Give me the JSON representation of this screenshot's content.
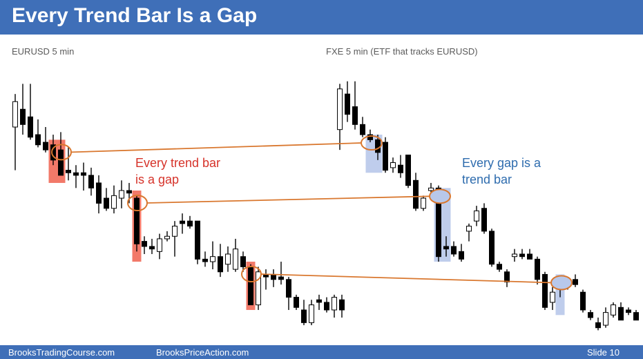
{
  "slide": {
    "title": "Every Trend Bar Is a Gap",
    "footer": {
      "left": "BrooksTradingCourse.com",
      "center": "BrooksPriceAction.com",
      "slide": "Slide  10"
    },
    "colors": {
      "title_bar": "#3f6fb8",
      "red_highlight": "#f0614f",
      "blue_highlight": "#b8c8ea",
      "connector": "#d9772e",
      "bear_body": "#000000",
      "bull_body": "#ffffff",
      "left_annotation": "#d6332a",
      "right_annotation": "#2e6cae"
    }
  },
  "chart_data": [
    {
      "type": "candlestick",
      "title": "EURUSD 5 min",
      "annotation": [
        "Every trend bar",
        "is a gap"
      ],
      "ylim": [
        0,
        100
      ],
      "candles": [
        {
          "o": 75,
          "h": 88,
          "l": 58,
          "c": 85
        },
        {
          "o": 82,
          "h": 92,
          "l": 72,
          "c": 76
        },
        {
          "o": 79,
          "h": 92,
          "l": 70,
          "c": 71
        },
        {
          "o": 72,
          "h": 78,
          "l": 67,
          "c": 68
        },
        {
          "o": 69,
          "h": 75,
          "l": 65,
          "c": 66
        },
        {
          "o": 68,
          "h": 72,
          "l": 60,
          "c": 62
        },
        {
          "o": 66,
          "h": 73,
          "l": 56,
          "c": 56
        },
        {
          "o": 58,
          "h": 67,
          "l": 54,
          "c": 57
        },
        {
          "o": 57,
          "h": 60,
          "l": 51,
          "c": 56
        },
        {
          "o": 57,
          "h": 61,
          "l": 50,
          "c": 56
        },
        {
          "o": 56,
          "h": 59,
          "l": 48,
          "c": 51
        },
        {
          "o": 53,
          "h": 56,
          "l": 41,
          "c": 45
        },
        {
          "o": 47,
          "h": 51,
          "l": 42,
          "c": 43
        },
        {
          "o": 43,
          "h": 52,
          "l": 41,
          "c": 48
        },
        {
          "o": 47,
          "h": 54,
          "l": 43,
          "c": 50
        },
        {
          "o": 50,
          "h": 53,
          "l": 45,
          "c": 49
        },
        {
          "o": 47,
          "h": 48,
          "l": 26,
          "c": 29
        },
        {
          "o": 30,
          "h": 32,
          "l": 25,
          "c": 28
        },
        {
          "o": 28,
          "h": 31,
          "l": 25,
          "c": 27
        },
        {
          "o": 26,
          "h": 33,
          "l": 23,
          "c": 31
        },
        {
          "o": 31,
          "h": 34,
          "l": 30,
          "c": 32
        },
        {
          "o": 32,
          "h": 38,
          "l": 24,
          "c": 36
        },
        {
          "o": 38,
          "h": 41,
          "l": 33,
          "c": 37
        },
        {
          "o": 38,
          "h": 40,
          "l": 35,
          "c": 36
        },
        {
          "o": 38,
          "h": 38,
          "l": 21,
          "c": 23
        },
        {
          "o": 23,
          "h": 26,
          "l": 20,
          "c": 22
        },
        {
          "o": 22,
          "h": 30,
          "l": 19,
          "c": 24
        },
        {
          "o": 24,
          "h": 29,
          "l": 16,
          "c": 18
        },
        {
          "o": 21,
          "h": 28,
          "l": 18,
          "c": 25
        },
        {
          "o": 19,
          "h": 31,
          "l": 18,
          "c": 27
        },
        {
          "o": 24,
          "h": 26,
          "l": 18,
          "c": 20
        },
        {
          "o": 20,
          "h": 21,
          "l": 5,
          "c": 5
        },
        {
          "o": 5,
          "h": 20,
          "l": 3,
          "c": 18
        },
        {
          "o": 17,
          "h": 19,
          "l": 11,
          "c": 16
        },
        {
          "o": 17,
          "h": 19,
          "l": 12,
          "c": 15
        },
        {
          "o": 16,
          "h": 22,
          "l": 13,
          "c": 15
        },
        {
          "o": 15,
          "h": 16,
          "l": 3,
          "c": 8
        },
        {
          "o": 8,
          "h": 9,
          "l": 3,
          "c": 4
        },
        {
          "o": 3,
          "h": 7,
          "l": -3,
          "c": -2
        },
        {
          "o": -2,
          "h": 7,
          "l": -3,
          "c": 5
        },
        {
          "o": 7,
          "h": 9,
          "l": 3,
          "c": 6
        },
        {
          "o": 6,
          "h": 8,
          "l": 2,
          "c": 3
        },
        {
          "o": 3,
          "h": 9,
          "l": 0,
          "c": 8
        },
        {
          "o": 7,
          "h": 9,
          "l": 0,
          "c": 3
        }
      ],
      "highlights": [
        {
          "from": 5,
          "to": 6,
          "lo": 53,
          "hi": 70,
          "color": "red"
        },
        {
          "from": 16,
          "to": 16,
          "lo": 22,
          "hi": 50,
          "color": "red"
        },
        {
          "from": 31,
          "to": 31,
          "lo": 3,
          "hi": 22,
          "color": "red"
        }
      ],
      "circles": [
        6,
        16,
        31
      ]
    },
    {
      "type": "candlestick",
      "title": "FXE 5 min (ETF that tracks EURUSD)",
      "annotation": [
        "Every gap is a",
        "trend bar"
      ],
      "ylim": [
        0,
        100
      ],
      "candles": [
        {
          "o": 74,
          "h": 92,
          "l": 66,
          "c": 90
        },
        {
          "o": 88,
          "h": 93,
          "l": 77,
          "c": 80
        },
        {
          "o": 83,
          "h": 93,
          "l": 74,
          "c": 76
        },
        {
          "o": 76,
          "h": 79,
          "l": 71,
          "c": 72
        },
        {
          "o": 72,
          "h": 74,
          "l": 69,
          "c": 70
        },
        {
          "o": 70,
          "h": 72,
          "l": 62,
          "c": 65
        },
        {
          "o": 69,
          "h": 71,
          "l": 57,
          "c": 58
        },
        {
          "o": 59,
          "h": 63,
          "l": 57,
          "c": 61
        },
        {
          "o": 60,
          "h": 64,
          "l": 55,
          "c": 57
        },
        {
          "o": 64,
          "h": 64,
          "l": 51,
          "c": 52
        },
        {
          "o": 54,
          "h": 57,
          "l": 42,
          "c": 43
        },
        {
          "o": 43,
          "h": 48,
          "l": 42,
          "c": 47
        },
        {
          "o": 50,
          "h": 53,
          "l": 47,
          "c": 51
        },
        {
          "o": 51,
          "h": 52,
          "l": 22,
          "c": 24
        },
        {
          "o": 28,
          "h": 32,
          "l": 24,
          "c": 27
        },
        {
          "o": 28,
          "h": 30,
          "l": 24,
          "c": 25
        },
        {
          "o": 26,
          "h": 29,
          "l": 22,
          "c": 23
        },
        {
          "o": 34,
          "h": 37,
          "l": 30,
          "c": 36
        },
        {
          "o": 38,
          "h": 44,
          "l": 36,
          "c": 42
        },
        {
          "o": 43,
          "h": 45,
          "l": 33,
          "c": 34
        },
        {
          "o": 34,
          "h": 35,
          "l": 20,
          "c": 21
        },
        {
          "o": 21,
          "h": 22,
          "l": 18,
          "c": 19
        },
        {
          "o": 18,
          "h": 19,
          "l": 12,
          "c": 14
        },
        {
          "o": 24,
          "h": 27,
          "l": 22,
          "c": 25
        },
        {
          "o": 25,
          "h": 27,
          "l": 23,
          "c": 24
        },
        {
          "o": 25,
          "h": 27,
          "l": 23,
          "c": 23
        },
        {
          "o": 23,
          "h": 24,
          "l": 13,
          "c": 15
        },
        {
          "o": 17,
          "h": 18,
          "l": 3,
          "c": 4
        },
        {
          "o": 6,
          "h": 12,
          "l": 3,
          "c": 10
        },
        {
          "o": 12,
          "h": 15,
          "l": 8,
          "c": 13
        },
        {
          "o": 13,
          "h": 15,
          "l": 11,
          "c": 14
        },
        {
          "o": 15,
          "h": 17,
          "l": 12,
          "c": 13
        },
        {
          "o": 10,
          "h": 11,
          "l": 2,
          "c": 3
        },
        {
          "o": 2,
          "h": 3,
          "l": -1,
          "c": 0
        },
        {
          "o": -2,
          "h": 0,
          "l": -5,
          "c": -4
        },
        {
          "o": -3,
          "h": 4,
          "l": -4,
          "c": 2
        },
        {
          "o": 1,
          "h": 6,
          "l": 0,
          "c": 5
        },
        {
          "o": 4,
          "h": 6,
          "l": -1,
          "c": -1
        },
        {
          "o": 3,
          "h": 4,
          "l": 1,
          "c": 2
        },
        {
          "o": 2,
          "h": 3,
          "l": -1,
          "c": -1
        }
      ],
      "highlights": [
        {
          "from": 4,
          "to": 5,
          "lo": 57,
          "hi": 72,
          "color": "blue"
        },
        {
          "from": 13,
          "to": 14,
          "lo": 22,
          "hi": 51,
          "color": "blue"
        },
        {
          "from": 29,
          "to": 29,
          "lo": 1,
          "hi": 17,
          "color": "blue"
        }
      ],
      "circles": [
        4,
        13,
        29
      ]
    }
  ]
}
